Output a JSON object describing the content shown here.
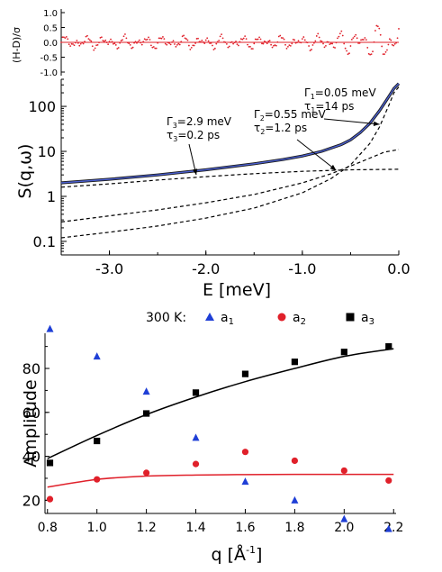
{
  "chart_data": [
    {
      "type": "scatter",
      "panel": "residuals",
      "ylabel": "(H-D)/σ",
      "xlim": [
        -3.5,
        0.0
      ],
      "ylim": [
        -1.0,
        1.0
      ],
      "yticks": [
        "1.0",
        "0.5",
        "0.0",
        "-0.5",
        "-1.0"
      ],
      "ytick_values": [
        1.0,
        0.5,
        0.0,
        -0.5,
        -1.0
      ],
      "zero_line_color": "#000000",
      "fit_line_color": "#e0202a",
      "points_color": "#e0202a",
      "residual_shape": "oscillating small-amplitude residuals around zero, increasing amplitude near E = 0",
      "grid": false
    },
    {
      "type": "line",
      "panel": "spectrum",
      "xlabel": "E [meV]",
      "ylabel": "S(q,ω)",
      "xlim": [
        -3.5,
        0.0
      ],
      "ylim": [
        0.05,
        400
      ],
      "yscale": "log",
      "xticks": [
        "-3.0",
        "-2.0",
        "-1.0",
        "0.0"
      ],
      "xtick_values": [
        -3.0,
        -2.0,
        -1.0,
        0.0
      ],
      "yticks": [
        "0.1",
        "1",
        "10",
        "100"
      ],
      "ytick_values": [
        0.1,
        1,
        10,
        100
      ],
      "series": [
        {
          "role": "data",
          "color": "#1a1a1a",
          "x": [
            -3.5,
            -3.0,
            -2.5,
            -2.0,
            -1.5,
            -1.2,
            -1.0,
            -0.8,
            -0.6,
            -0.5,
            -0.4,
            -0.3,
            -0.2,
            -0.1,
            -0.05,
            0.0
          ],
          "y": [
            2.0,
            2.4,
            3.0,
            3.9,
            5.3,
            6.6,
            7.9,
            10.0,
            14.0,
            18.0,
            26.0,
            42.0,
            80.0,
            170.0,
            250.0,
            320.0
          ]
        },
        {
          "role": "fit",
          "color": "#4a5fd0",
          "x": [
            -3.5,
            -3.0,
            -2.5,
            -2.0,
            -1.5,
            -1.2,
            -1.0,
            -0.8,
            -0.6,
            -0.5,
            -0.4,
            -0.3,
            -0.2,
            -0.1,
            -0.05,
            0.0
          ],
          "y": [
            2.0,
            2.4,
            3.0,
            3.9,
            5.3,
            6.6,
            7.9,
            10.0,
            14.0,
            18.0,
            26.0,
            42.0,
            80.0,
            170.0,
            250.0,
            320.0
          ]
        },
        {
          "role": "component",
          "style": "dashed",
          "color": "#000000",
          "x": [
            -3.5,
            -3.0,
            -2.5,
            -2.0,
            -1.5,
            -1.0,
            -0.5,
            0.0
          ],
          "y": [
            1.6,
            1.9,
            2.3,
            2.75,
            3.2,
            3.6,
            3.9,
            4.0
          ]
        },
        {
          "role": "component",
          "style": "dashed",
          "color": "#000000",
          "x": [
            -3.5,
            -3.0,
            -2.5,
            -2.0,
            -1.5,
            -1.0,
            -0.7,
            -0.5,
            -0.3,
            -0.15,
            0.0
          ],
          "y": [
            0.27,
            0.37,
            0.5,
            0.72,
            1.1,
            2.0,
            3.2,
            4.7,
            7.1,
            9.6,
            11.0
          ]
        },
        {
          "role": "component",
          "style": "dashed",
          "color": "#000000",
          "x": [
            -3.5,
            -3.0,
            -2.5,
            -2.0,
            -1.5,
            -1.0,
            -0.7,
            -0.5,
            -0.3,
            -0.2,
            -0.1,
            -0.05,
            0.0
          ],
          "y": [
            0.12,
            0.16,
            0.22,
            0.33,
            0.55,
            1.2,
            2.5,
            5.0,
            15.0,
            35.0,
            110.0,
            200.0,
            270.0
          ]
        }
      ],
      "annotations": [
        {
          "line1": "Γ1=0.05 meV",
          "line2": "τ1=14 ps",
          "points_to": {
            "x": -0.2,
            "y": 40.0
          }
        },
        {
          "line1": "Γ2=0.55 meV",
          "line2": "τ2=1.2 ps",
          "points_to": {
            "x": -0.65,
            "y": 3.8
          }
        },
        {
          "line1": "Γ3=2.9 meV",
          "line2": "τ3=0.2 ps",
          "points_to": {
            "x": -2.1,
            "y": 3.0
          }
        }
      ],
      "grid": false
    },
    {
      "type": "scatter",
      "panel": "amplitudes",
      "xlabel": "q [Å⁻¹]",
      "ylabel": "Amplitude",
      "xlim": [
        0.79,
        2.21
      ],
      "ylim": [
        14,
        96
      ],
      "xticks": [
        "0.8",
        "1.0",
        "1.2",
        "1.4",
        "1.6",
        "1.8",
        "2.0",
        "2.2"
      ],
      "xtick_values": [
        0.8,
        1.0,
        1.2,
        1.4,
        1.6,
        1.8,
        2.0,
        2.2
      ],
      "yticks": [
        "20",
        "40",
        "60",
        "80"
      ],
      "ytick_values": [
        20,
        40,
        60,
        80
      ],
      "legend_prefix": "300 K:",
      "legend_placement": "top",
      "series": [
        {
          "name": "a1",
          "marker": "triangle",
          "color": "#1f3fd6",
          "x": [
            0.81,
            1.0,
            1.2,
            1.4,
            1.6,
            1.8,
            2.0,
            2.18
          ],
          "y": [
            98,
            85.5,
            69.5,
            48.5,
            28.5,
            20,
            11.5,
            7
          ]
        },
        {
          "name": "a2",
          "marker": "circle",
          "color": "#e0202a",
          "x": [
            0.81,
            1.0,
            1.2,
            1.4,
            1.6,
            1.8,
            2.0,
            2.18
          ],
          "y": [
            20.5,
            29.5,
            32.5,
            36.5,
            42,
            38,
            33.5,
            29
          ]
        },
        {
          "name": "a3",
          "marker": "square",
          "color": "#000000",
          "x": [
            0.81,
            1.0,
            1.2,
            1.4,
            1.6,
            1.8,
            2.0,
            2.18
          ],
          "y": [
            37,
            47,
            59.5,
            69,
            77.5,
            83,
            87.5,
            90
          ]
        }
      ],
      "fits": [
        {
          "color": "#000000",
          "x": [
            0.8,
            1.0,
            1.2,
            1.4,
            1.6,
            1.8,
            2.0,
            2.2
          ],
          "y": [
            39,
            49.5,
            59,
            67,
            74,
            80,
            85.5,
            89
          ]
        },
        {
          "color": "#e0202a",
          "x": [
            0.8,
            1.0,
            1.2,
            1.4,
            1.6,
            1.8,
            2.0,
            2.2
          ],
          "y": [
            26,
            29.5,
            31,
            31.5,
            31.7,
            31.8,
            31.8,
            31.8
          ]
        }
      ],
      "grid": false
    }
  ]
}
